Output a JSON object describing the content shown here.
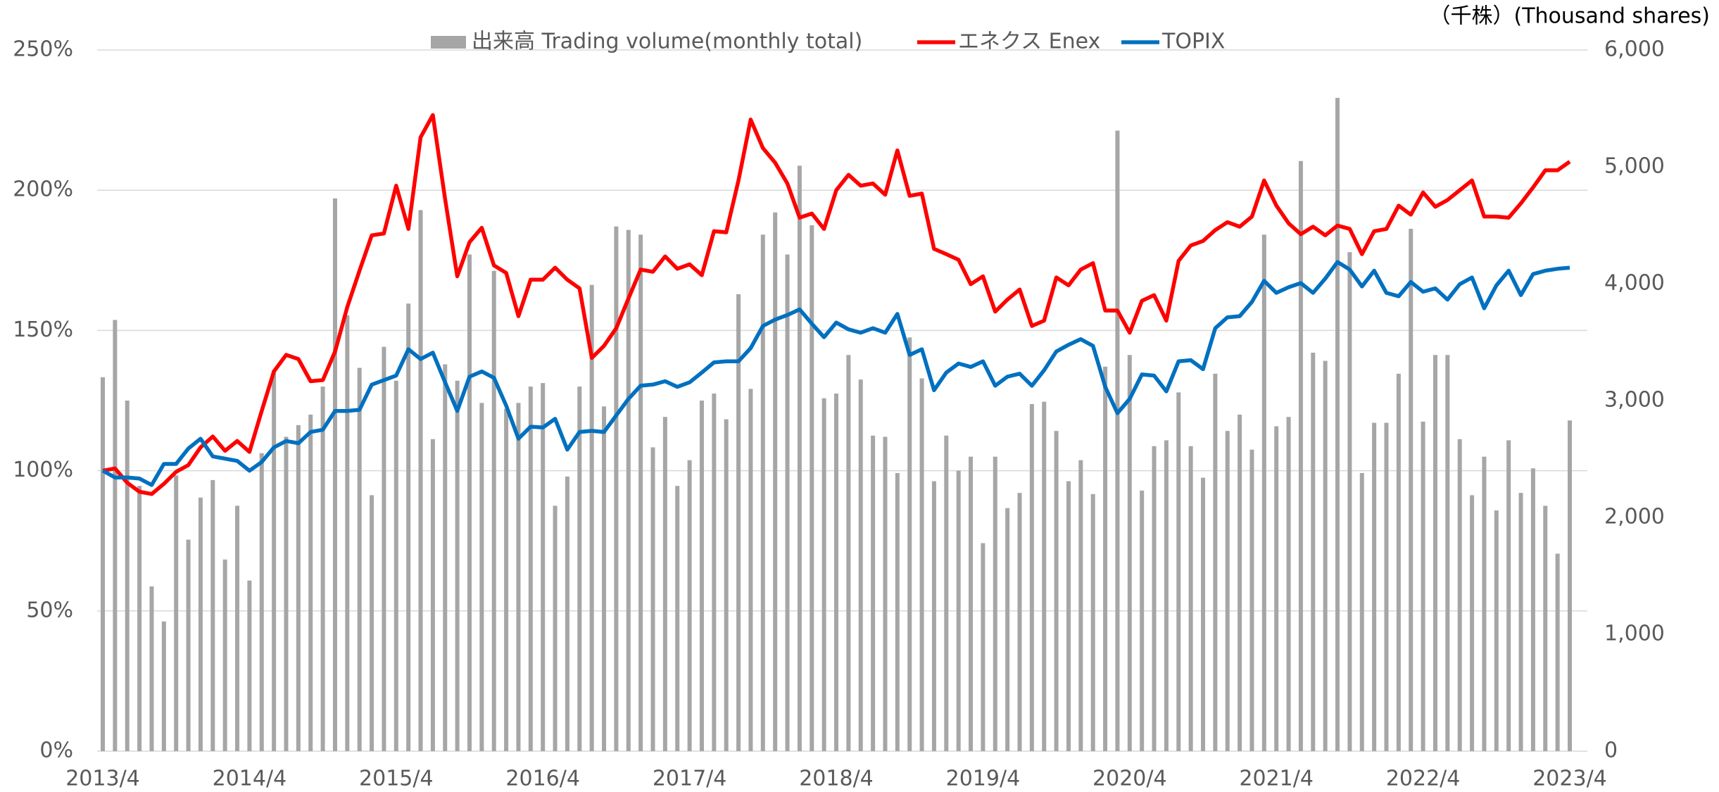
{
  "chart_data": {
    "type": "combo",
    "y2label": "（千株）(Thousand shares)",
    "categories": [
      "2013/4",
      null,
      null,
      null,
      null,
      null,
      null,
      null,
      null,
      null,
      null,
      null,
      "2014/4",
      null,
      null,
      null,
      null,
      null,
      null,
      null,
      null,
      null,
      null,
      null,
      "2015/4",
      null,
      null,
      null,
      null,
      null,
      null,
      null,
      null,
      null,
      null,
      null,
      "2016/4",
      null,
      null,
      null,
      null,
      null,
      null,
      null,
      null,
      null,
      null,
      null,
      "2017/4",
      null,
      null,
      null,
      null,
      null,
      null,
      null,
      null,
      null,
      null,
      null,
      "2018/4",
      null,
      null,
      null,
      null,
      null,
      null,
      null,
      null,
      null,
      null,
      null,
      "2019/4",
      null,
      null,
      null,
      null,
      null,
      null,
      null,
      null,
      null,
      null,
      null,
      "2020/4",
      null,
      null,
      null,
      null,
      null,
      null,
      null,
      null,
      null,
      null,
      null,
      "2021/4",
      null,
      null,
      null,
      null,
      null,
      null,
      null,
      null,
      null,
      null,
      null,
      "2022/4",
      null,
      null,
      null,
      null,
      null,
      null,
      null,
      null,
      null,
      null,
      null,
      "2023/4"
    ],
    "series": [
      {
        "name": "出来高 Trading volume(monthly total)",
        "type": "bar",
        "axis": "y2",
        "color": "#a6a6a6",
        "values": [
          3200,
          3690,
          3000,
          2270,
          1410,
          1110,
          2360,
          1810,
          2170,
          2320,
          1640,
          2100,
          1460,
          2550,
          3260,
          2690,
          2790,
          2880,
          3120,
          4730,
          3730,
          3280,
          2190,
          3460,
          3170,
          3830,
          4630,
          2670,
          3310,
          3170,
          4250,
          2980,
          4110,
          2930,
          2980,
          3120,
          3150,
          2100,
          2350,
          3120,
          3990,
          2950,
          4490,
          4460,
          4420,
          2600,
          2860,
          2270,
          2490,
          3000,
          3060,
          2840,
          3910,
          3100,
          4420,
          4610,
          4250,
          5010,
          4500,
          3020,
          3060,
          3390,
          3180,
          2700,
          2690,
          2380,
          3540,
          3190,
          2310,
          2700,
          2400,
          2520,
          1780,
          2520,
          2080,
          2210,
          2970,
          2990,
          2740,
          2310,
          2490,
          2200,
          3290,
          5310,
          3390,
          2230,
          2610,
          2660,
          3070,
          2610,
          2340,
          3230,
          2740,
          2880,
          2580,
          4420,
          2780,
          2860,
          5050,
          3410,
          3340,
          5590,
          4270,
          2380,
          2810,
          2810,
          3230,
          4470,
          2820,
          3390,
          3390,
          2670,
          2190,
          2520,
          2060,
          2660,
          2210,
          2420,
          2100,
          1690,
          2830
        ]
      },
      {
        "name": "エネクス Enex",
        "type": "line",
        "color": "#ff0000",
        "values": [
          100.0,
          100.8,
          95.7,
          92.5,
          91.7,
          95.3,
          99.6,
          102.0,
          108.3,
          112.2,
          107.1,
          110.6,
          106.7,
          121.3,
          135.4,
          141.3,
          139.8,
          131.9,
          132.3,
          142.5,
          158.3,
          171.3,
          183.9,
          184.6,
          201.6,
          186.2,
          218.9,
          226.8,
          196.9,
          169.3,
          181.5,
          186.6,
          173.2,
          170.5,
          155.1,
          168.1,
          168.1,
          172.4,
          168.1,
          165.0,
          140.2,
          144.5,
          150.8,
          161.4,
          171.7,
          170.9,
          176.4,
          172.0,
          173.6,
          169.7,
          185.4,
          185.0,
          203.5,
          225.2,
          215.0,
          209.8,
          202.4,
          190.2,
          191.7,
          186.2,
          200.0,
          205.5,
          201.6,
          202.4,
          198.4,
          214.2,
          198.0,
          198.8,
          179.1,
          177.2,
          175.2,
          166.5,
          169.3,
          156.7,
          161.0,
          164.6,
          151.6,
          153.5,
          168.9,
          166.1,
          171.7,
          174.0,
          157.1,
          157.1,
          149.2,
          160.6,
          162.6,
          153.5,
          174.8,
          180.3,
          181.9,
          185.8,
          188.6,
          187.0,
          190.6,
          203.5,
          194.5,
          188.2,
          184.3,
          187.0,
          183.9,
          187.4,
          186.2,
          177.2,
          185.4,
          186.2,
          194.5,
          191.3,
          199.2,
          194.1,
          196.5,
          200.0,
          203.5,
          190.6,
          190.6,
          190.2,
          195.3,
          201.0,
          207.1,
          207.1,
          210.2
        ]
      },
      {
        "name": "TOPIX",
        "type": "line",
        "color": "#0070c0",
        "values": [
          100.0,
          97.6,
          97.6,
          97.2,
          94.9,
          102.4,
          102.4,
          107.9,
          111.4,
          105.1,
          104.3,
          103.5,
          100.0,
          103.1,
          108.3,
          110.6,
          109.8,
          113.8,
          114.6,
          121.3,
          121.3,
          121.7,
          130.7,
          132.3,
          133.9,
          143.3,
          139.8,
          142.1,
          131.5,
          121.3,
          133.5,
          135.4,
          133.1,
          123.2,
          111.4,
          115.7,
          115.4,
          118.5,
          107.5,
          113.8,
          114.2,
          113.8,
          119.7,
          125.6,
          130.3,
          130.7,
          131.9,
          129.9,
          131.5,
          135.0,
          138.6,
          139.0,
          139.0,
          143.7,
          151.6,
          153.9,
          155.5,
          157.5,
          152.4,
          147.6,
          152.8,
          150.4,
          149.2,
          150.8,
          149.2,
          155.9,
          141.3,
          143.3,
          128.7,
          135.0,
          138.2,
          137.0,
          139.0,
          130.3,
          133.5,
          134.6,
          130.3,
          135.8,
          142.5,
          144.9,
          146.9,
          144.5,
          129.9,
          120.5,
          125.6,
          134.3,
          133.9,
          128.3,
          139.0,
          139.4,
          136.2,
          150.8,
          154.7,
          155.1,
          160.2,
          167.7,
          163.4,
          165.4,
          166.9,
          163.4,
          168.5,
          174.4,
          171.7,
          165.7,
          171.3,
          163.4,
          162.2,
          167.3,
          163.8,
          165.0,
          161.0,
          166.5,
          168.9,
          157.9,
          166.1,
          171.3,
          162.6,
          170.1,
          171.3,
          172.0,
          172.4
        ]
      }
    ],
    "ylim": [
      0,
      250
    ],
    "yticks": [
      {
        "value": 0,
        "label": "0%"
      },
      {
        "value": 50,
        "label": "50%"
      },
      {
        "value": 100,
        "label": "100%"
      },
      {
        "value": 150,
        "label": "150%"
      },
      {
        "value": 200,
        "label": "200%"
      },
      {
        "value": 250,
        "label": "250%"
      }
    ],
    "y2lim": [
      0,
      6000
    ],
    "y2ticks": [
      0,
      {
        "value": 1000,
        "label": "1,000"
      },
      {
        "value": 2000,
        "label": "2,000"
      },
      {
        "value": 3000,
        "label": "3,000"
      },
      {
        "value": 4000,
        "label": "4,000"
      },
      {
        "value": 5000,
        "label": "5,000"
      },
      {
        "value": 6000,
        "label": "6,000"
      }
    ],
    "grid": true,
    "legend": "top"
  }
}
